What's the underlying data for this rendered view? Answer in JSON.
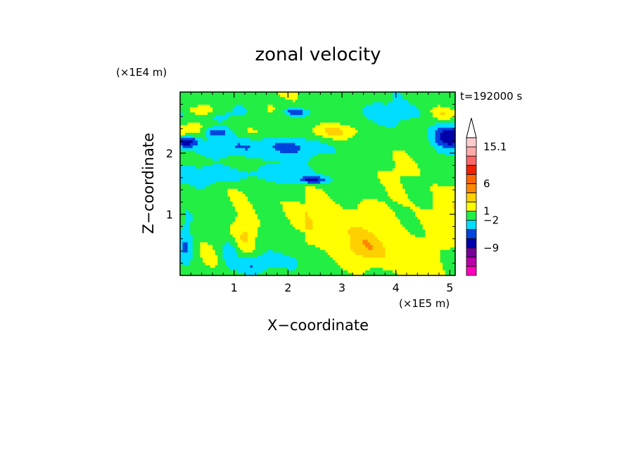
{
  "chart_data": {
    "type": "heatmap",
    "title": "zonal velocity",
    "xlabel": "X−coordinate",
    "ylabel": "Z−coordinate",
    "x_unit": "(×1E5 m)",
    "y_unit": "(×1E4 m)",
    "time_label": "t=192000 s",
    "xlim": [
      0,
      5.1
    ],
    "ylim": [
      0,
      3.0
    ],
    "x_ticks": [
      "1",
      "2",
      "3",
      "4",
      "5"
    ],
    "y_ticks": [
      "1",
      "2"
    ],
    "x_tick_values": [
      1,
      2,
      3,
      4,
      5
    ],
    "y_tick_values": [
      1,
      2
    ],
    "colorbar": {
      "labels": [
        {
          "text": "15.1",
          "value": 15.1
        },
        {
          "text": "6",
          "value": 6
        },
        {
          "text": "1",
          "value": 1
        },
        {
          "text": "−2",
          "value": -2
        },
        {
          "text": "−9",
          "value": -9
        }
      ],
      "levels": [
        {
          "color": "#ff00bb"
        },
        {
          "color": "#bb00aa"
        },
        {
          "color": "#770099"
        },
        {
          "color": "#0000aa"
        },
        {
          "color": "#0044dd"
        },
        {
          "color": "#00ddff"
        },
        {
          "color": "#22ee44"
        },
        {
          "color": "#ffff00"
        },
        {
          "color": "#ffd000"
        },
        {
          "color": "#ff8800"
        },
        {
          "color": "#ff6600"
        },
        {
          "color": "#ee2200"
        },
        {
          "color": "#ff6666"
        },
        {
          "color": "#ffaaaa"
        },
        {
          "color": "#ffcccc"
        }
      ]
    }
  }
}
